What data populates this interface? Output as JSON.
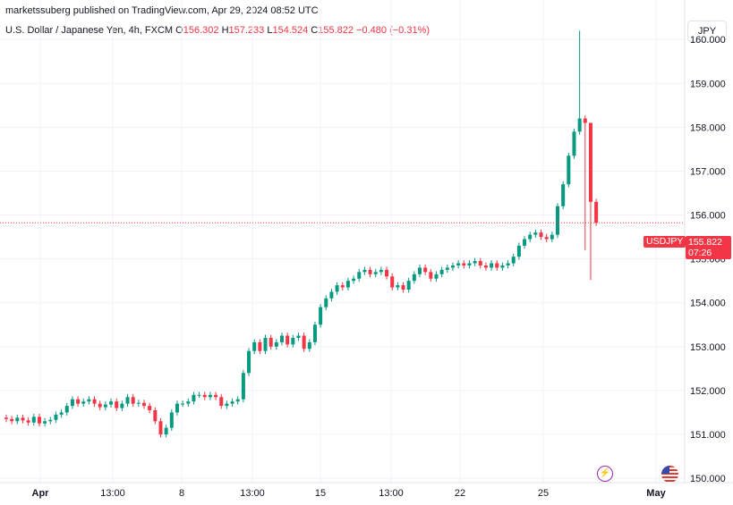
{
  "attribution": "marketssuberg published on TradingView.com, Apr 29, 2024 08:52 UTC",
  "legend": {
    "symbol_desc": "U.S. Dollar / Japanese Yen, 4h, FXCM",
    "o_label": "O",
    "o_value": "156.302",
    "h_label": "H",
    "h_value": "157.233",
    "l_label": "L",
    "l_value": "154.524",
    "c_label": "C",
    "c_value": "155.822",
    "change": "−0.480 (−0.31%)"
  },
  "currency_button": "JPY",
  "price_tag": {
    "symbol": "USDJPY",
    "price": "155.822",
    "countdown": "07:26"
  },
  "colors": {
    "up": "#089981",
    "down": "#f23645",
    "grid": "#f0f3fa",
    "axis_text": "#131722"
  },
  "icons": {
    "flash": "lightning-icon",
    "flag": "us-flag-icon"
  },
  "chart_data": {
    "type": "candlestick",
    "ylim": [
      149.9,
      160.9
    ],
    "y_ticks": [
      "150.000",
      "151.000",
      "152.000",
      "153.000",
      "154.000",
      "155.000",
      "156.000",
      "157.000",
      "158.000",
      "159.000",
      "160.000"
    ],
    "x_ticks": [
      "Apr",
      "13:00",
      "8",
      "13:00",
      "15",
      "13:00",
      "22",
      "25",
      "May"
    ],
    "last_price": 155.822,
    "closes": [
      151.35,
      151.3,
      151.38,
      151.32,
      151.27,
      151.4,
      151.25,
      151.3,
      151.33,
      151.45,
      151.5,
      151.65,
      151.8,
      151.7,
      151.75,
      151.8,
      151.7,
      151.62,
      151.68,
      151.75,
      151.6,
      151.7,
      151.85,
      151.7,
      151.72,
      151.65,
      151.55,
      151.3,
      151.0,
      151.15,
      151.5,
      151.7,
      151.7,
      151.75,
      151.9,
      151.9,
      151.85,
      151.9,
      151.85,
      151.65,
      151.7,
      151.75,
      151.8,
      152.4,
      152.9,
      153.1,
      152.9,
      153.2,
      153.0,
      153.1,
      153.25,
      153.05,
      153.2,
      153.25,
      152.95,
      153.1,
      153.5,
      153.9,
      154.1,
      154.25,
      154.4,
      154.35,
      154.5,
      154.55,
      154.7,
      154.75,
      154.65,
      154.7,
      154.75,
      154.6,
      154.35,
      154.4,
      154.3,
      154.5,
      154.65,
      154.8,
      154.7,
      154.55,
      154.65,
      154.75,
      154.8,
      154.85,
      154.9,
      154.85,
      154.9,
      154.95,
      154.85,
      154.8,
      154.9,
      154.8,
      154.85,
      154.9,
      155.05,
      155.3,
      155.45,
      155.55,
      155.6,
      155.5,
      155.45,
      155.55,
      156.2,
      156.7,
      157.35,
      157.9,
      158.2,
      158.1,
      156.3,
      155.822
    ]
  }
}
